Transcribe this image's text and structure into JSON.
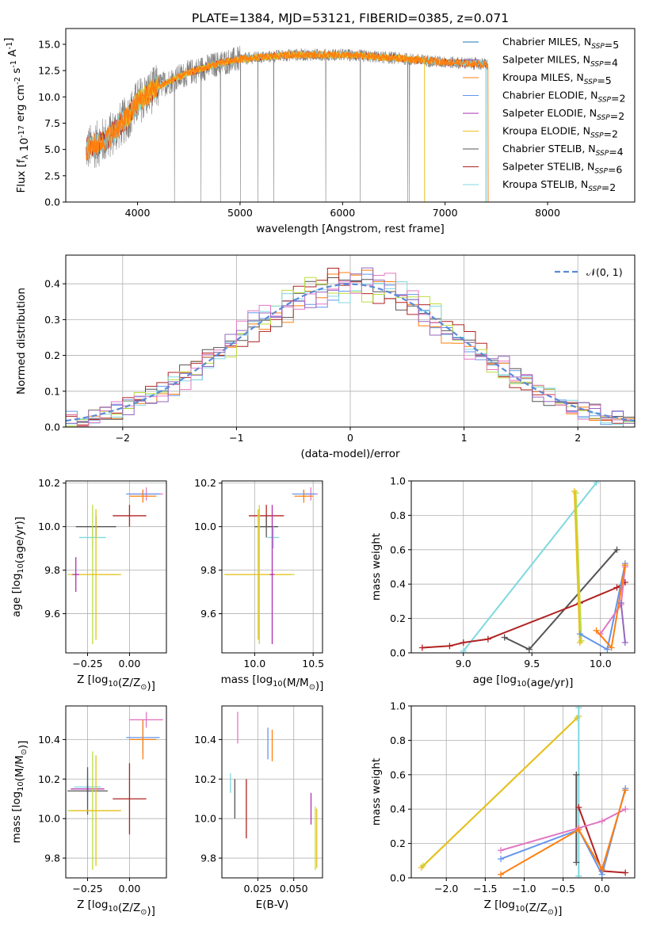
{
  "colors": {
    "chabrier_miles": "#1f77b4",
    "salpeter_miles": "#9467bd",
    "kroupa_miles": "#ff7f0e",
    "chabrier_elodie": "#6495ed",
    "salpeter_elodie": "#b030b0",
    "kroupa_elodie": "#e8c020",
    "chabrier_stelib": "#555555",
    "salpeter_stelib": "#b22222",
    "kroupa_stelib": "#7fd8e0",
    "pink": "#e377c2",
    "lime": "#bcde3c",
    "grid": "#b0b0b0",
    "normal_curve": "#5b8ad6"
  },
  "chart_data": [
    {
      "id": "spectrum",
      "type": "line",
      "title": "PLATE=1384, MJD=53121, FIBERID=0385, z=0.071",
      "xlabel": "wavelength [Angstrom, rest frame]",
      "ylabel": "Flux [f$_\\lambda$ 10$^{-17}$ erg cm$^{-2}$ s$^{-1}$ A$^{-1}$]",
      "xlim": [
        3300,
        8850
      ],
      "ylim": [
        0,
        16.5
      ],
      "xticks": [
        "4000",
        "5000",
        "6000",
        "7000",
        "8000"
      ],
      "yticks": [
        "0.0",
        "2.5",
        "5.0",
        "7.5",
        "10.0",
        "12.5",
        "15.0"
      ],
      "legend_position": "top-right",
      "legend": [
        {
          "text": "Chabrier MILES, N$_{SSP}$=5",
          "color_key": "chabrier_miles"
        },
        {
          "text": "Salpeter MILES, N$_{SSP}$=4",
          "color_key": "salpeter_miles"
        },
        {
          "text": "Kroupa MILES, N$_{SSP}$=5",
          "color_key": "kroupa_miles"
        },
        {
          "text": "Chabrier ELODIE, N$_{SSP}$=2",
          "color_key": "chabrier_elodie"
        },
        {
          "text": "Salpeter ELODIE, N$_{SSP}$=2",
          "color_key": "salpeter_elodie"
        },
        {
          "text": "Kroupa ELODIE, N$_{SSP}$=2",
          "color_key": "kroupa_elodie"
        },
        {
          "text": "Chabrier STELIB, N$_{SSP}$=4",
          "color_key": "chabrier_stelib"
        },
        {
          "text": "Salpeter STELIB, N$_{SSP}$=6",
          "color_key": "salpeter_stelib"
        },
        {
          "text": "Kroupa STELIB, N$_{SSP}$=2",
          "color_key": "kroupa_stelib"
        }
      ],
      "continuum": {
        "x": [
          3500,
          3700,
          3900,
          4000,
          4200,
          4500,
          4800,
          5000,
          5500,
          6000,
          6500,
          7000,
          7400,
          7600
        ],
        "y": [
          5.0,
          6.0,
          8.0,
          9.5,
          11.0,
          12.3,
          13.2,
          13.6,
          14.0,
          14.0,
          13.7,
          13.3,
          13.1,
          13.0
        ]
      },
      "spectra_ranges": [
        {
          "color_key": "salpeter_stelib",
          "xmin": 3500,
          "xmax": 7400
        },
        {
          "color_key": "kroupa_stelib",
          "xmin": 3500,
          "xmax": 7400
        },
        {
          "color_key": "kroupa_elodie",
          "xmin": 3880,
          "xmax": 6800
        },
        {
          "color_key": "kroupa_miles",
          "xmin": 3500,
          "xmax": 7420
        }
      ],
      "data_range": {
        "xmin": 3500,
        "xmax": 7420
      }
    },
    {
      "id": "residuals",
      "type": "step",
      "xlabel": "(data-model)/error",
      "ylabel": "Normed distribution",
      "xlim": [
        -2.5,
        2.5
      ],
      "ylim": [
        0,
        0.48
      ],
      "xticks": [
        "−2",
        "−1",
        "0",
        "1",
        "2"
      ],
      "yticks": [
        "0.0",
        "0.1",
        "0.2",
        "0.3",
        "0.4"
      ],
      "legend_position": "top-right",
      "legend": [
        {
          "text": "𝒩(0, 1)",
          "color_key": "normal_curve",
          "style": "dashed"
        }
      ],
      "bin_width": 0.1,
      "bin_start": -2.5
    },
    {
      "id": "age_vs_Z",
      "type": "errorbar",
      "xlabel": "Z [log$_{10}$(Z/Z$_\\odot$)]",
      "ylabel": "age  [log$_{10}$(age/yr)]",
      "xlim": [
        -0.38,
        0.22
      ],
      "ylim": [
        9.42,
        10.21
      ],
      "xticks": [
        "−0.25",
        "0.00"
      ],
      "yticks": [
        "9.6",
        "9.8",
        "10.0",
        "10.2"
      ],
      "points": [
        {
          "color_key": "salpeter_stelib",
          "x": 0.0,
          "xerr": 0.1,
          "y": 10.05,
          "yerr": 0.05
        },
        {
          "color_key": "chabrier_stelib",
          "x": -0.2,
          "xerr": 0.12,
          "y": 10.0,
          "yerr": 0.05
        },
        {
          "color_key": "kroupa_stelib",
          "x": -0.22,
          "xerr": 0.08,
          "y": 9.95,
          "yerr": 0.05
        },
        {
          "color_key": "pink",
          "x": 0.1,
          "xerr": 0.1,
          "y": 10.15,
          "yerr": 0.03
        },
        {
          "color_key": "chabrier_elodie",
          "x": 0.08,
          "xerr": 0.1,
          "y": 10.15,
          "yerr": 0.02
        },
        {
          "color_key": "kroupa_miles",
          "x": 0.08,
          "xerr": 0.08,
          "y": 10.14,
          "yerr": 0.03
        },
        {
          "color_key": "lime",
          "x": -0.22,
          "xerr": 0.15,
          "y": 9.78,
          "yerr": 0.32
        },
        {
          "color_key": "kroupa_elodie",
          "x": -0.2,
          "xerr": 0.15,
          "y": 9.78,
          "yerr": 0.3
        },
        {
          "color_key": "salpeter_elodie",
          "x": -0.32,
          "xerr": 0.02,
          "y": 9.78,
          "yerr": 0.08
        }
      ]
    },
    {
      "id": "age_vs_mass",
      "type": "errorbar",
      "xlabel": "mass [log$_{10}$(M/M$_\\odot$)]",
      "ylabel": "",
      "xlim": [
        9.72,
        10.58
      ],
      "ylim": [
        9.42,
        10.21
      ],
      "xticks": [
        "10.0",
        "10.5"
      ],
      "yticks": [
        "9.6",
        "9.8",
        "10.0",
        "10.2"
      ],
      "points": [
        {
          "color_key": "salpeter_stelib",
          "x": 10.1,
          "xerr": 0.15,
          "y": 10.05,
          "yerr": 0.05
        },
        {
          "color_key": "chabrier_stelib",
          "x": 10.1,
          "xerr": 0.1,
          "y": 10.0,
          "yerr": 0.05
        },
        {
          "color_key": "kroupa_stelib",
          "x": 10.16,
          "xerr": 0.05,
          "y": 9.95,
          "yerr": 0.05
        },
        {
          "color_key": "pink",
          "x": 10.48,
          "xerr": 0.06,
          "y": 10.15,
          "yerr": 0.03
        },
        {
          "color_key": "chabrier_elodie",
          "x": 10.42,
          "xerr": 0.1,
          "y": 10.15,
          "yerr": 0.02
        },
        {
          "color_key": "kroupa_miles",
          "x": 10.42,
          "xerr": 0.08,
          "y": 10.14,
          "yerr": 0.03
        },
        {
          "color_key": "lime",
          "x": 10.04,
          "xerr": 0.3,
          "y": 9.78,
          "yerr": 0.32
        },
        {
          "color_key": "kroupa_elodie",
          "x": 10.03,
          "xerr": 0.28,
          "y": 9.78,
          "yerr": 0.3
        },
        {
          "color_key": "salpeter_elodie",
          "x": 10.15,
          "xerr": 0.02,
          "y": 9.78,
          "yerr": 0.32
        }
      ]
    },
    {
      "id": "weight_vs_age",
      "type": "line",
      "xlabel": "age  [log$_{10}$(age/yr)]",
      "ylabel": "mass weight",
      "xlim": [
        8.62,
        10.25
      ],
      "ylim": [
        0,
        1
      ],
      "xticks": [
        "9.0",
        "9.5",
        "10.0"
      ],
      "yticks": [
        "0.0",
        "0.2",
        "0.4",
        "0.6",
        "0.8",
        "1.0"
      ],
      "series": [
        {
          "color_key": "kroupa_stelib",
          "x": [
            9.0,
            9.97
          ],
          "y": [
            0.01,
            0.99
          ]
        },
        {
          "color_key": "chabrier_stelib",
          "x": [
            9.3,
            9.48,
            10.12
          ],
          "y": [
            0.09,
            0.02,
            0.6
          ]
        },
        {
          "color_key": "salpeter_stelib",
          "x": [
            8.7,
            8.9,
            9.0,
            9.18,
            9.85,
            10.12,
            10.18
          ],
          "y": [
            0.03,
            0.04,
            0.06,
            0.08,
            0.29,
            0.38,
            0.41
          ]
        },
        {
          "color_key": "lime",
          "x": [
            9.82,
            9.86
          ],
          "y": [
            0.93,
            0.07
          ]
        },
        {
          "color_key": "kroupa_elodie",
          "x": [
            9.81,
            9.85
          ],
          "y": [
            0.94,
            0.06
          ]
        },
        {
          "color_key": "chabrier_elodie",
          "x": [
            9.85,
            10.05,
            10.18
          ],
          "y": [
            0.11,
            0.02,
            0.52
          ]
        },
        {
          "color_key": "pink",
          "x": [
            10.0,
            10.15,
            10.18
          ],
          "y": [
            0.11,
            0.28,
            0.5
          ]
        },
        {
          "color_key": "kroupa_miles",
          "x": [
            9.97,
            10.08,
            10.18
          ],
          "y": [
            0.13,
            0.03,
            0.51
          ]
        },
        {
          "color_key": "salpeter_miles",
          "x": [
            10.15,
            10.18
          ],
          "y": [
            0.29,
            0.06
          ]
        }
      ]
    },
    {
      "id": "mass_vs_Z",
      "type": "errorbar",
      "xlabel": "Z [log$_{10}$(Z/Z$_\\odot$)]",
      "ylabel": "mass [log$_{10}$(M/M$_\\odot$)]",
      "xlim": [
        -0.38,
        0.22
      ],
      "ylim": [
        9.7,
        10.57
      ],
      "xticks": [
        "−0.25",
        "0.00"
      ],
      "yticks": [
        "9.8",
        "10.0",
        "10.2",
        "10.4"
      ],
      "points": [
        {
          "color_key": "pink",
          "x": 0.1,
          "xerr": 0.1,
          "y": 10.5,
          "yerr": 0.04
        },
        {
          "color_key": "chabrier_elodie",
          "x": 0.08,
          "xerr": 0.1,
          "y": 10.41,
          "yerr": 0.08
        },
        {
          "color_key": "kroupa_miles",
          "x": 0.08,
          "xerr": 0.08,
          "y": 10.4,
          "yerr": 0.1
        },
        {
          "color_key": "kroupa_stelib",
          "x": -0.25,
          "xerr": 0.08,
          "y": 10.16,
          "yerr": 0.07
        },
        {
          "color_key": "salpeter_elodie",
          "x": -0.25,
          "xerr": 0.1,
          "y": 10.15,
          "yerr": 0.02
        },
        {
          "color_key": "chabrier_stelib",
          "x": -0.25,
          "xerr": 0.12,
          "y": 10.14,
          "yerr": 0.12
        },
        {
          "color_key": "salpeter_stelib",
          "x": 0.0,
          "xerr": 0.1,
          "y": 10.1,
          "yerr": 0.18
        },
        {
          "color_key": "lime",
          "x": -0.22,
          "xerr": 0.15,
          "y": 10.04,
          "yerr": 0.3
        },
        {
          "color_key": "kroupa_elodie",
          "x": -0.2,
          "xerr": 0.15,
          "y": 10.04,
          "yerr": 0.28
        }
      ]
    },
    {
      "id": "mass_vs_ebv",
      "type": "errorbar",
      "xlabel": "E(B-V)",
      "ylabel": "",
      "xlim": [
        0.0,
        0.07
      ],
      "ylim": [
        9.7,
        10.57
      ],
      "xticks": [
        "0.025",
        "0.050"
      ],
      "yticks": [
        "9.8",
        "10.0",
        "10.2",
        "10.4"
      ],
      "points": [
        {
          "color_key": "pink",
          "x": 0.011,
          "yerr": 0.08,
          "y": 10.46
        },
        {
          "color_key": "chabrier_elodie",
          "x": 0.032,
          "yerr": 0.08,
          "y": 10.38
        },
        {
          "color_key": "kroupa_miles",
          "x": 0.035,
          "yerr": 0.08,
          "y": 10.37
        },
        {
          "color_key": "kroupa_stelib",
          "x": 0.006,
          "yerr": 0.05,
          "y": 10.18
        },
        {
          "color_key": "chabrier_stelib",
          "x": 0.009,
          "yerr": 0.1,
          "y": 10.1
        },
        {
          "color_key": "salpeter_stelib",
          "x": 0.017,
          "yerr": 0.15,
          "y": 10.05
        },
        {
          "color_key": "salpeter_elodie",
          "x": 0.062,
          "yerr": 0.08,
          "y": 10.05
        },
        {
          "color_key": "lime",
          "x": 0.065,
          "yerr": 0.16,
          "y": 9.9
        },
        {
          "color_key": "kroupa_elodie",
          "x": 0.066,
          "yerr": 0.15,
          "y": 9.9
        }
      ]
    },
    {
      "id": "weight_vs_Z",
      "type": "line",
      "xlabel": "Z [log$_{10}$(Z/Z$_\\odot$)]",
      "ylabel": "mass weight",
      "xlim": [
        -2.45,
        0.42
      ],
      "ylim": [
        0,
        1
      ],
      "xticks": [
        "−2.0",
        "−1.5",
        "−1.0",
        "−0.5",
        "0.0"
      ],
      "yticks": [
        "0.0",
        "0.2",
        "0.4",
        "0.6",
        "0.8",
        "1.0"
      ],
      "series": [
        {
          "color_key": "lime",
          "x": [
            -2.3,
            -0.32
          ],
          "y": [
            0.07,
            0.93
          ]
        },
        {
          "color_key": "kroupa_elodie",
          "x": [
            -2.32,
            -0.3
          ],
          "y": [
            0.06,
            0.94
          ]
        },
        {
          "color_key": "kroupa_stelib",
          "x": [
            -0.3,
            -0.3
          ],
          "y": [
            0.01,
            0.99
          ]
        },
        {
          "color_key": "chabrier_stelib",
          "x": [
            -0.33,
            -0.33
          ],
          "y": [
            0.09,
            0.6
          ]
        },
        {
          "color_key": "salpeter_stelib",
          "x": [
            -0.3,
            0.0,
            0.3
          ],
          "y": [
            0.41,
            0.04,
            0.03
          ]
        },
        {
          "color_key": "chabrier_elodie",
          "x": [
            -1.3,
            -0.3,
            0.0,
            0.3
          ],
          "y": [
            0.11,
            0.28,
            0.02,
            0.52
          ]
        },
        {
          "color_key": "pink",
          "x": [
            -1.3,
            -0.3,
            0.0,
            0.3
          ],
          "y": [
            0.16,
            0.29,
            0.33,
            0.4
          ]
        },
        {
          "color_key": "kroupa_miles",
          "x": [
            -1.3,
            -0.3,
            0.0,
            0.3
          ],
          "y": [
            0.02,
            0.28,
            0.05,
            0.51
          ]
        }
      ]
    }
  ]
}
